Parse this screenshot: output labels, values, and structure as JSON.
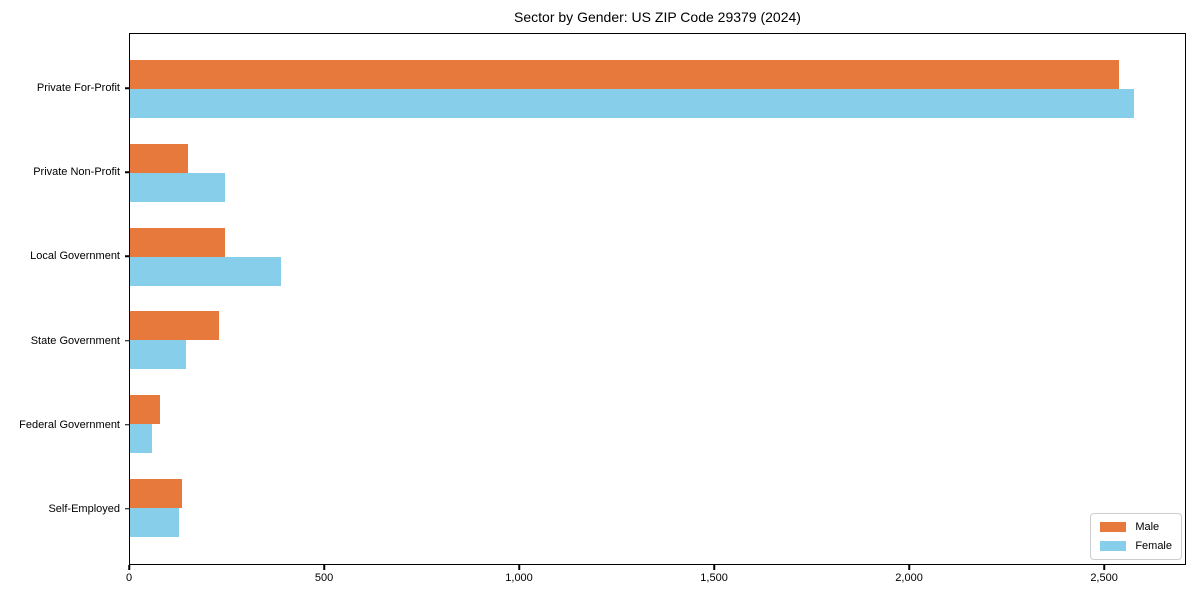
{
  "chart_data": {
    "type": "bar",
    "orientation": "horizontal",
    "title": "Sector by Gender: US ZIP Code 29379 (2024)",
    "categories": [
      "Private For-Profit",
      "Private Non-Profit",
      "Local Government",
      "State Government",
      "Federal Government",
      "Self-Employed"
    ],
    "series": [
      {
        "name": "Male",
        "color": "#E8793D",
        "values": [
          2540,
          150,
          243,
          228,
          76,
          134
        ]
      },
      {
        "name": "Female",
        "color": "#87CEEB",
        "values": [
          2580,
          245,
          389,
          144,
          56,
          126
        ]
      }
    ],
    "xlabel": "",
    "ylabel": "",
    "xlim": [
      0,
      2710
    ],
    "xticks": [
      {
        "value": 0,
        "label": "0"
      },
      {
        "value": 500,
        "label": "500"
      },
      {
        "value": 1000,
        "label": "1,000"
      },
      {
        "value": 1500,
        "label": "1,500"
      },
      {
        "value": 2000,
        "label": "2,000"
      },
      {
        "value": 2500,
        "label": "2,500"
      }
    ],
    "grid": false,
    "legend": {
      "position": "lower-right"
    },
    "colors": {
      "background": "#FFFFFF",
      "axis": "#000000",
      "text": "#000000",
      "legend_border": "#CCCCCC"
    }
  }
}
